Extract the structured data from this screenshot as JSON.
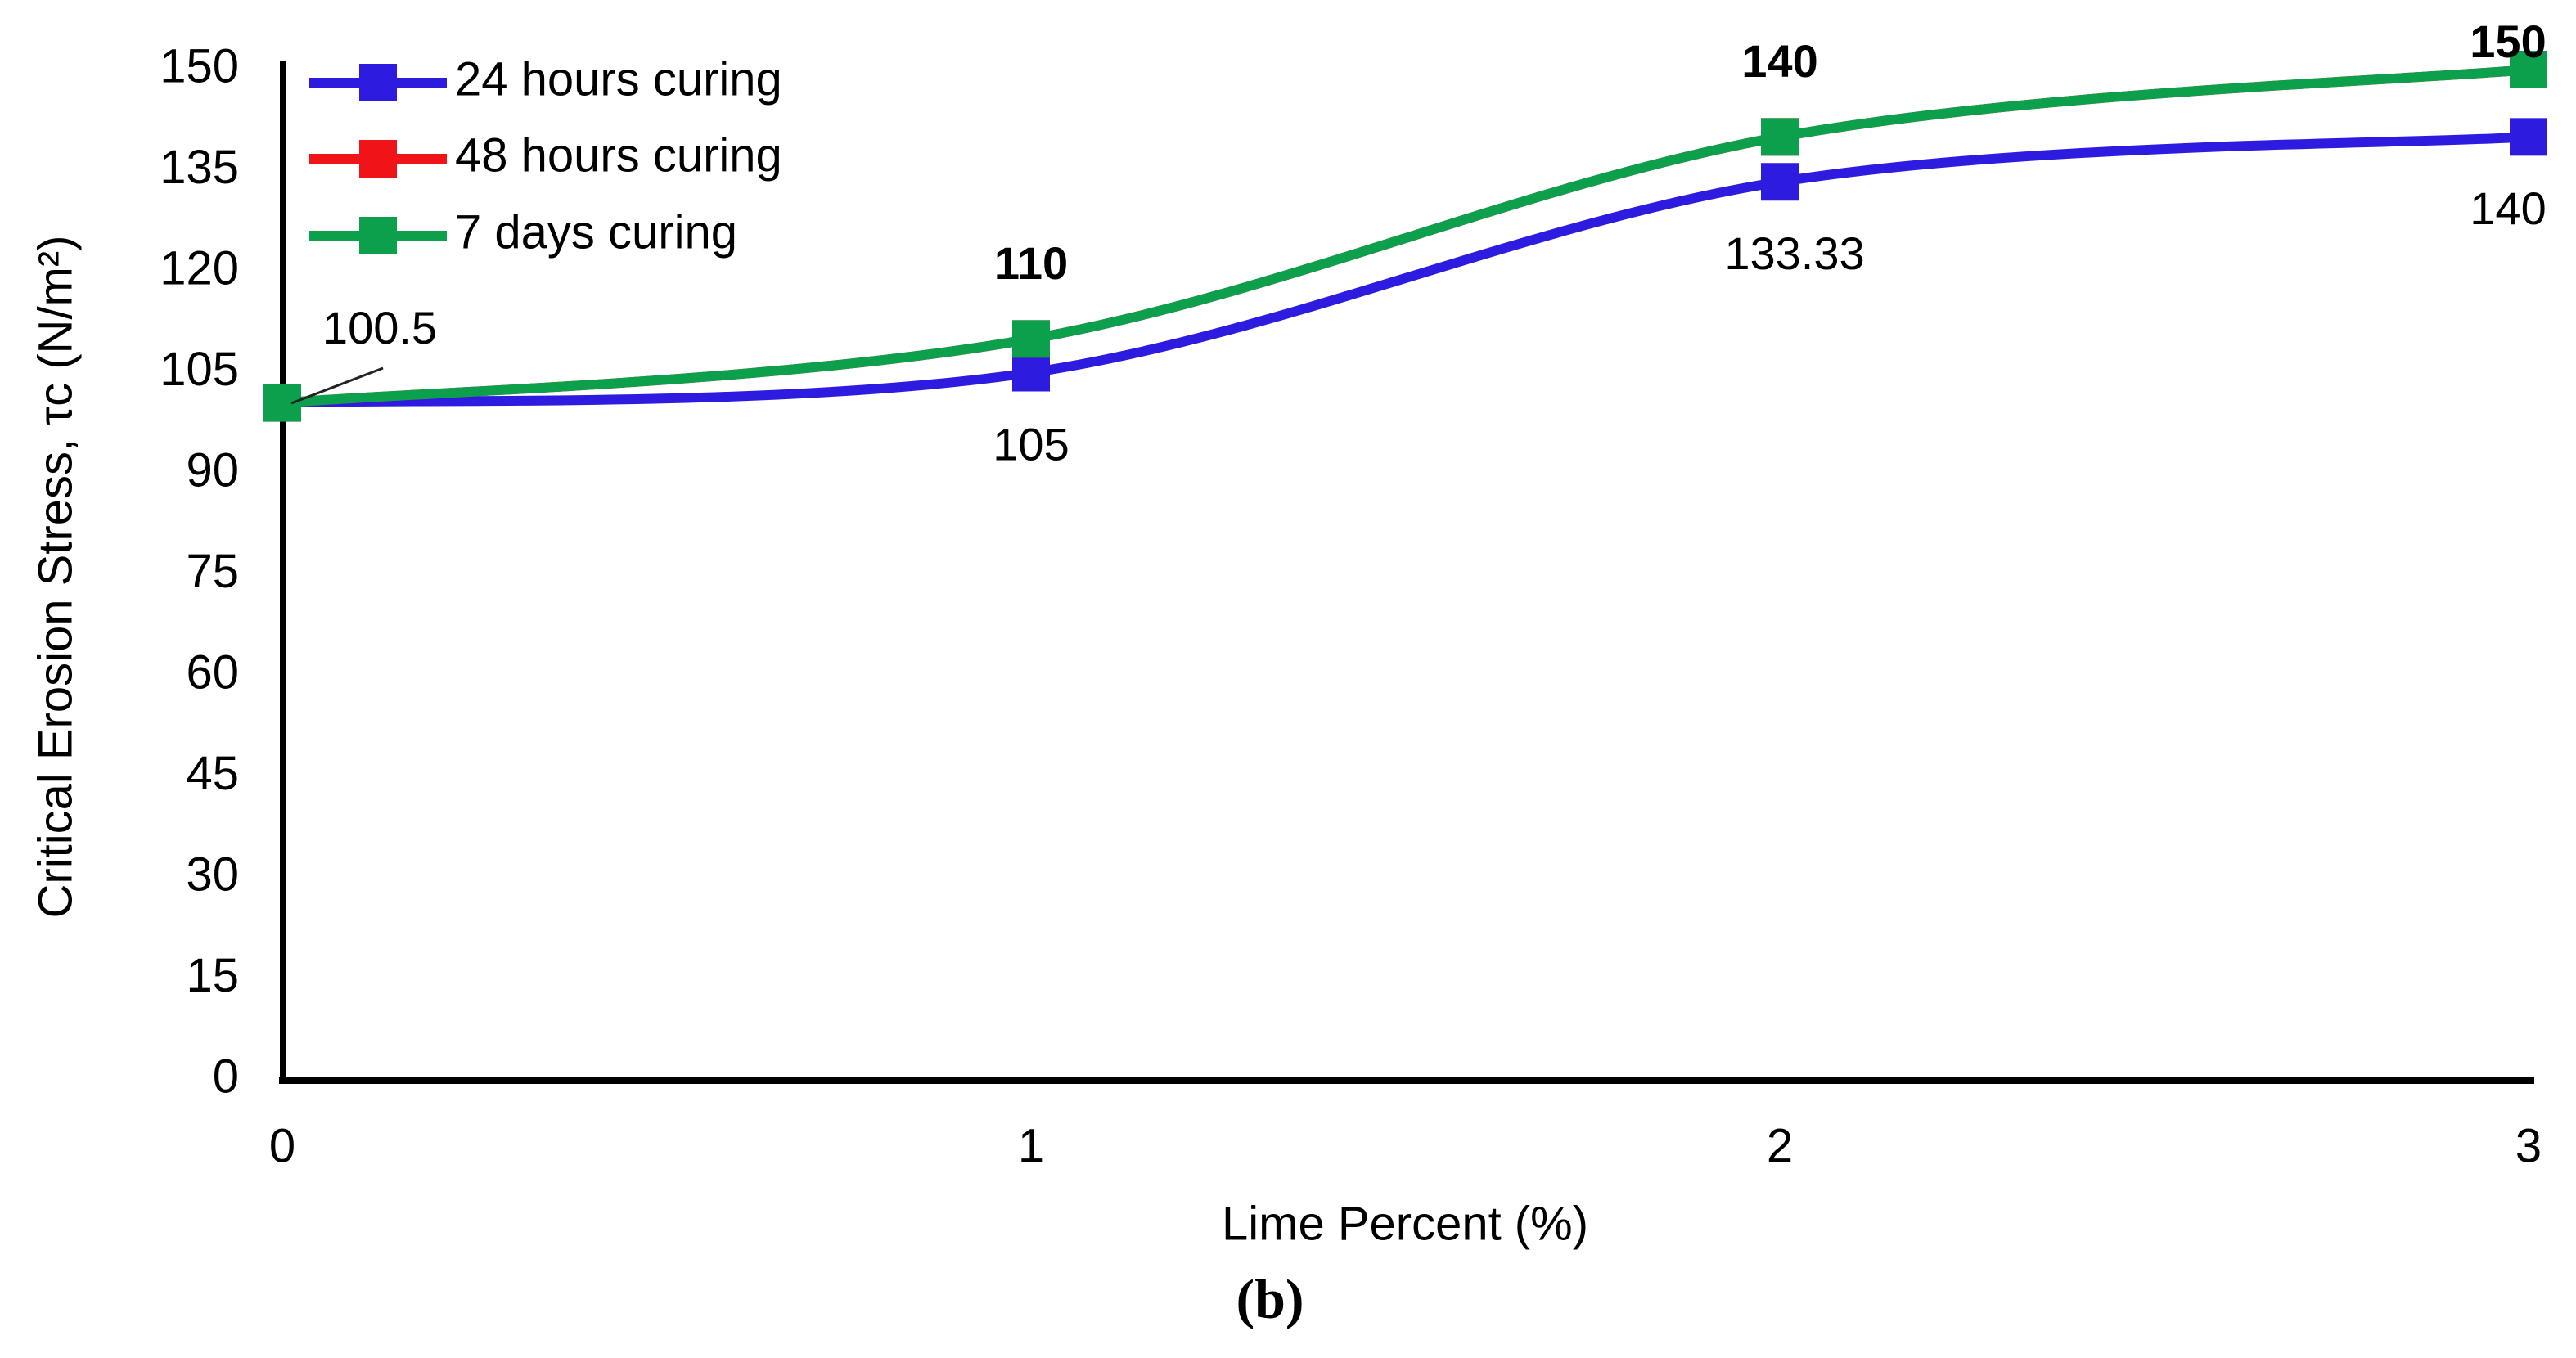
{
  "figure": {
    "caption": "(b)"
  },
  "chart_data": {
    "type": "line",
    "title": "",
    "xlabel": "Lime Percent (%)",
    "ylabel": "Critical Erosion Stress, τc (N/m²)",
    "x": [
      0,
      1,
      2,
      3
    ],
    "x_tick_labels": [
      "0",
      "1",
      "2",
      "3"
    ],
    "y_ticks": [
      0,
      15,
      30,
      45,
      60,
      75,
      90,
      105,
      120,
      135,
      150
    ],
    "xlim": [
      0,
      3
    ],
    "ylim": [
      0,
      150
    ],
    "grid": false,
    "legend_position": "top-left-inside",
    "marker": "square",
    "line_style": "smooth",
    "series": [
      {
        "name": "24 hours curing",
        "color": "#2E1BE0",
        "values": [
          100.5,
          105,
          133.33,
          140
        ],
        "bold_labels": false,
        "point_labels": [
          {
            "index": 1,
            "text": "105",
            "placement": "below",
            "dx": 0
          },
          {
            "index": 2,
            "text": "133.33",
            "placement": "below",
            "dx": 18
          },
          {
            "index": 3,
            "text": "140",
            "placement": "below",
            "dx": -25
          }
        ]
      },
      {
        "name": "48 hours curing",
        "color": "#F01418",
        "values": [
          100.5,
          110,
          140,
          150
        ],
        "hidden_behind": "7 days curing",
        "bold_labels": false,
        "point_labels": []
      },
      {
        "name": "7 days curing",
        "color": "#0DA04C",
        "values": [
          100.5,
          110,
          140,
          150
        ],
        "bold_labels": true,
        "point_labels": [
          {
            "index": 1,
            "text": "110",
            "placement": "above",
            "dx": 0
          },
          {
            "index": 2,
            "text": "140",
            "placement": "above",
            "dx": 0
          },
          {
            "index": 3,
            "text": "150",
            "placement": "above",
            "dx": -25
          }
        ]
      }
    ],
    "annotation": {
      "text": "100.5",
      "points_to": "all series at x = 0",
      "leader_line": true
    },
    "colors": {
      "axis": "#000000",
      "text": "#000000",
      "background": "#ffffff"
    }
  }
}
